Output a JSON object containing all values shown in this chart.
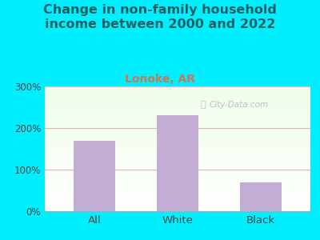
{
  "title": "Change in non-family household\nincome between 2000 and 2022",
  "subtitle": "Lonoke, AR",
  "categories": [
    "All",
    "White",
    "Black"
  ],
  "values": [
    170,
    230,
    70
  ],
  "bar_color": "#c2aed4",
  "title_fontsize": 11.5,
  "subtitle_fontsize": 10,
  "subtitle_color": "#cc7755",
  "title_color": "#1a6060",
  "outer_bg": "#00efff",
  "ylim": [
    0,
    300
  ],
  "yticks": [
    0,
    100,
    200,
    300
  ],
  "ytick_labels": [
    "0%",
    "100%",
    "200%",
    "300%"
  ],
  "grid_color": "#e8b0b0",
  "watermark": "City-Data.com",
  "watermark_color": "#aab8c2"
}
